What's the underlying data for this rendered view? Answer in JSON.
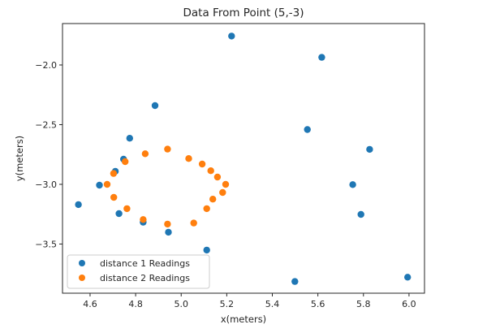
{
  "chart_data": {
    "type": "scatter",
    "title": "Data From Point (5,-3)",
    "xlabel": "x(meters)",
    "ylabel": "y(meters)",
    "xlim": [
      4.479,
      6.068
    ],
    "ylim": [
      -3.912,
      -1.653
    ],
    "xticks": [
      4.6,
      4.8,
      5.0,
      5.2,
      5.4,
      5.6,
      5.8,
      6.0
    ],
    "xtick_labels": [
      "4.6",
      "4.8",
      "5.0",
      "5.2",
      "5.4",
      "5.6",
      "5.8",
      "6.0"
    ],
    "yticks": [
      -2.0,
      -2.5,
      -3.0,
      -3.5
    ],
    "ytick_labels": [
      "−2.0",
      "−2.5",
      "−3.0",
      "−3.5"
    ],
    "grid": false,
    "legend_position": "lower left",
    "series": [
      {
        "name": "distance 1 Readings",
        "color": "#1f77b4",
        "points": [
          [
            5.221,
            -1.758
          ],
          [
            5.617,
            -1.936
          ],
          [
            4.885,
            -2.34
          ],
          [
            5.554,
            -2.541
          ],
          [
            4.774,
            -2.614
          ],
          [
            5.827,
            -2.707
          ],
          [
            4.747,
            -2.789
          ],
          [
            4.711,
            -2.891
          ],
          [
            4.641,
            -3.007
          ],
          [
            5.753,
            -3.002
          ],
          [
            4.549,
            -3.17
          ],
          [
            4.727,
            -3.245
          ],
          [
            5.789,
            -3.252
          ],
          [
            4.833,
            -3.317
          ],
          [
            4.944,
            -3.401
          ],
          [
            5.112,
            -3.551
          ],
          [
            5.499,
            -3.814
          ],
          [
            5.994,
            -3.778
          ]
        ]
      },
      {
        "name": "distance 2 Readings",
        "color": "#ff7f0e",
        "points": [
          [
            4.94,
            -2.705
          ],
          [
            4.842,
            -2.744
          ],
          [
            4.754,
            -2.81
          ],
          [
            4.703,
            -2.909
          ],
          [
            4.675,
            -3.0
          ],
          [
            4.704,
            -3.109
          ],
          [
            4.762,
            -3.204
          ],
          [
            4.833,
            -3.295
          ],
          [
            4.94,
            -3.333
          ],
          [
            5.055,
            -3.324
          ],
          [
            5.112,
            -3.204
          ],
          [
            5.139,
            -3.124
          ],
          [
            5.182,
            -3.068
          ],
          [
            5.195,
            -3.0
          ],
          [
            5.159,
            -2.939
          ],
          [
            5.13,
            -2.886
          ],
          [
            5.092,
            -2.83
          ],
          [
            5.033,
            -2.784
          ]
        ]
      }
    ]
  },
  "legend": {
    "items": [
      {
        "label": "distance 1 Readings",
        "color": "#1f77b4"
      },
      {
        "label": "distance 2 Readings",
        "color": "#ff7f0e"
      }
    ]
  }
}
